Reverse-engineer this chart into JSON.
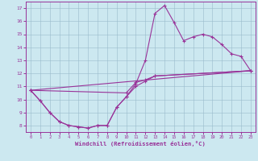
{
  "line1_x": [
    0,
    1,
    2,
    3,
    4,
    5,
    6,
    7,
    8,
    9,
    10,
    11,
    12,
    13,
    14,
    15,
    16,
    17,
    18,
    19,
    20,
    21,
    22,
    23
  ],
  "line1_y": [
    10.7,
    9.9,
    9.0,
    8.3,
    8.0,
    7.9,
    7.8,
    8.0,
    8.0,
    9.4,
    10.2,
    11.2,
    13.0,
    16.6,
    17.2,
    15.9,
    14.5,
    14.8,
    15.0,
    14.8,
    14.2,
    13.5,
    13.3,
    12.2
  ],
  "line2_x": [
    0,
    10,
    11,
    12,
    13,
    23
  ],
  "line2_y": [
    10.7,
    10.5,
    11.3,
    11.5,
    11.8,
    12.2
  ],
  "line3_x": [
    0,
    1,
    2,
    3,
    4,
    5,
    6,
    7,
    8,
    9,
    10,
    11,
    12,
    13,
    23
  ],
  "line3_y": [
    10.7,
    9.9,
    9.0,
    8.3,
    8.0,
    7.9,
    7.8,
    8.0,
    8.0,
    9.4,
    10.2,
    11.0,
    11.4,
    11.8,
    12.2
  ],
  "line4_x": [
    0,
    23
  ],
  "line4_y": [
    10.7,
    12.2
  ],
  "color": "#993399",
  "bg_color": "#cce8f0",
  "grid_color": "#99bbcc",
  "xlabel": "Windchill (Refroidissement éolien,°C)",
  "ylim": [
    7.5,
    17.5
  ],
  "xlim": [
    -0.5,
    23.5
  ],
  "yticks": [
    8,
    9,
    10,
    11,
    12,
    13,
    14,
    15,
    16,
    17
  ],
  "xticks": [
    0,
    1,
    2,
    3,
    4,
    5,
    6,
    7,
    8,
    9,
    10,
    11,
    12,
    13,
    14,
    15,
    16,
    17,
    18,
    19,
    20,
    21,
    22,
    23
  ]
}
